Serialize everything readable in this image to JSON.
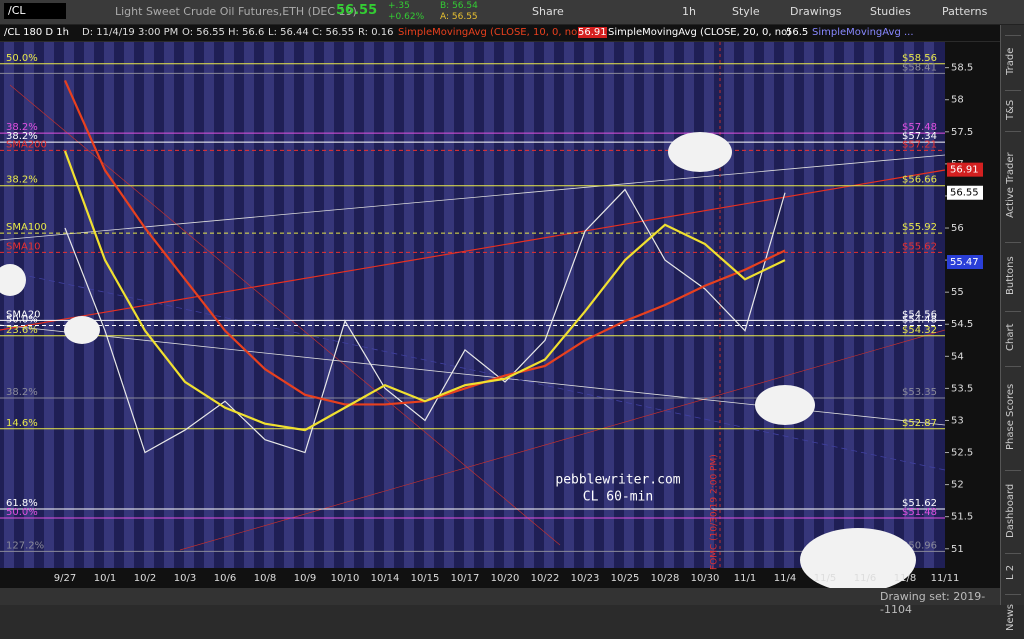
{
  "toolbar": {
    "symbol": "/CL",
    "description": "Light Sweet Crude Oil Futures,ETH (DEC 19)",
    "last": "56.55",
    "change": "+.35",
    "change_pct": "+0.62%",
    "bid": "B: 56.54",
    "ask": "A: 56.55",
    "share": "Share",
    "interval": "1h",
    "style": "Style",
    "drawings": "Drawings",
    "studies": "Studies",
    "patterns": "Patterns"
  },
  "header": {
    "chart_label": "/CL 180 D 1h",
    "date": "D: 11/4/19 3:00 PM",
    "open": "O: 56.55",
    "high": "H: 56.6",
    "low": "L: 56.44",
    "close": "C: 56.55",
    "range": "R: 0.16",
    "study1_value": "56.91",
    "study2_value": "56.5",
    "study3": "SimpleMovingAvg ..."
  },
  "chart_data": {
    "type": "line",
    "categories": [
      "9/27",
      "10/1",
      "10/2",
      "10/3",
      "10/6",
      "10/8",
      "10/9",
      "10/10",
      "10/14",
      "10/15",
      "10/17",
      "10/20",
      "10/22",
      "10/23",
      "10/25",
      "10/28",
      "10/30",
      "11/1",
      "11/4",
      "11/5",
      "11/6",
      "11/8",
      "11/11"
    ],
    "series": [
      {
        "name": "/CL 180 D 1h",
        "color": "#e8e8e8",
        "values": [
          56.0,
          54.4,
          52.5,
          52.85,
          53.3,
          52.7,
          52.5,
          54.55,
          53.5,
          53.0,
          54.1,
          53.6,
          54.25,
          55.95,
          56.6,
          55.5,
          55.05,
          54.4,
          56.55,
          null,
          null,
          null,
          null
        ]
      },
      {
        "name": "SimpleMovingAvg (CLOSE, 10, 0, no)",
        "color": "#e8401e",
        "values": [
          58.3,
          56.9,
          56.0,
          55.2,
          54.4,
          53.8,
          53.4,
          53.25,
          53.25,
          53.3,
          53.5,
          53.7,
          53.85,
          54.25,
          54.55,
          54.8,
          55.1,
          55.35,
          55.65,
          null,
          null,
          null,
          null
        ]
      },
      {
        "name": "SimpleMovingAvg (CLOSE, 20, 0, no)",
        "color": "#f0e030",
        "values": [
          57.2,
          55.5,
          54.4,
          53.6,
          53.2,
          52.95,
          52.85,
          53.2,
          53.55,
          53.3,
          53.55,
          53.65,
          53.95,
          54.7,
          55.5,
          56.05,
          55.75,
          55.2,
          55.5,
          null,
          null,
          null,
          null
        ]
      }
    ],
    "ylim": [
      50.7,
      58.9
    ],
    "yticks": [
      51,
      51.5,
      52,
      52.5,
      53,
      53.5,
      54,
      54.5,
      55,
      55.5,
      56,
      56.5,
      57,
      57.5,
      58,
      58.5
    ],
    "levels": [
      {
        "value": 58.56,
        "label": "$58.56",
        "color": "#e8e84a",
        "left_label": "50.0%"
      },
      {
        "value": 58.41,
        "label": "$58.41",
        "color": "#8a8a9a"
      },
      {
        "value": 57.48,
        "label": "$57.48",
        "color": "#e050e0",
        "left_label": "38.2%"
      },
      {
        "value": 57.34,
        "label": "$57.34",
        "color": "#ffffff",
        "left_label": "38.2%"
      },
      {
        "value": 57.21,
        "label": "$57.21",
        "color": "#e83030",
        "left_label": "SMA200",
        "dashed": true
      },
      {
        "value": 56.66,
        "label": "$56.66",
        "color": "#e8e84a",
        "left_label": "38.2%"
      },
      {
        "value": 55.92,
        "label": "$55.92",
        "color": "#e8e84a",
        "left_label": "SMA100",
        "dashed": true
      },
      {
        "value": 55.62,
        "label": "$55.62",
        "color": "#e83030",
        "left_label": "SMA10",
        "dashed": true
      },
      {
        "value": 54.56,
        "label": "$54.56",
        "color": "#ffffff",
        "left_label": "SMA20"
      },
      {
        "value": 54.48,
        "label": "$54.48",
        "color": "#ffffff",
        "left_label": "50.0%",
        "dashed": true
      },
      {
        "value": 54.32,
        "label": "$54.32",
        "color": "#e8e84a",
        "left_label": "23.6%"
      },
      {
        "value": 53.35,
        "label": "$53.35",
        "color": "#8a8a9a",
        "left_label": "38.2%"
      },
      {
        "value": 52.87,
        "label": "$52.87",
        "color": "#e8e84a",
        "left_label": "14.6%"
      },
      {
        "value": 51.62,
        "label": "$51.62",
        "color": "#ffffff",
        "left_label": "61.8%"
      },
      {
        "value": 51.48,
        "label": "$51.48",
        "color": "#e050e0",
        "left_label": "50.0%"
      },
      {
        "value": 50.96,
        "label": "$50.96",
        "color": "#8a8a9a",
        "left_label": "127.2%"
      }
    ],
    "price_tags": [
      {
        "value": 56.91,
        "color": "#d42020"
      },
      {
        "value": 56.55,
        "color": "#ffffff"
      },
      {
        "value": 55.47,
        "color": "#2a3fd8"
      }
    ],
    "annotations": {
      "site": "pebblewriter.com",
      "chart_note": "CL 60-min",
      "event": "FOMC (10/30/19 2:00 PM)"
    }
  },
  "sidebar": {
    "tabs": [
      "Trade",
      "T&S",
      "Active Trader",
      "Buttons",
      "Chart",
      "Phase Scores",
      "Dashboard",
      "L 2",
      "News"
    ]
  },
  "footer": {
    "drawing_set": "Drawing set: 2019--1104"
  }
}
